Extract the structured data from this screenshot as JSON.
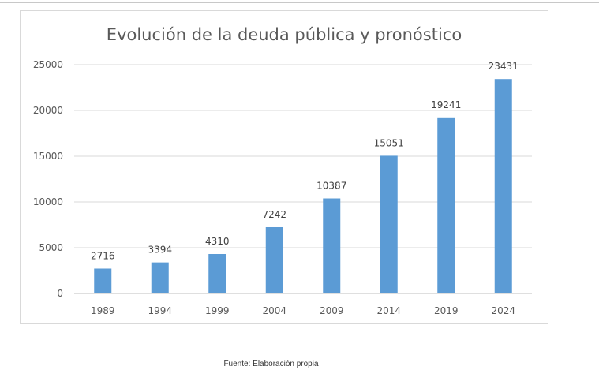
{
  "chart_data": {
    "type": "bar",
    "title": "Evolución de la deuda pública y pronóstico",
    "xlabel": "",
    "ylabel": "",
    "categories": [
      "1989",
      "1994",
      "1999",
      "2004",
      "2009",
      "2014",
      "2019",
      "2024"
    ],
    "values": [
      2716,
      3394,
      4310,
      7242,
      10387,
      15051,
      19241,
      23431
    ],
    "ylim": [
      0,
      25000
    ],
    "yticks": [
      "0",
      "5000",
      "10000",
      "15000",
      "20000",
      "25000"
    ],
    "grid": true,
    "legend": "none",
    "bar_color": "#5b9bd5"
  },
  "caption": "Fuente: Elaboración propia"
}
